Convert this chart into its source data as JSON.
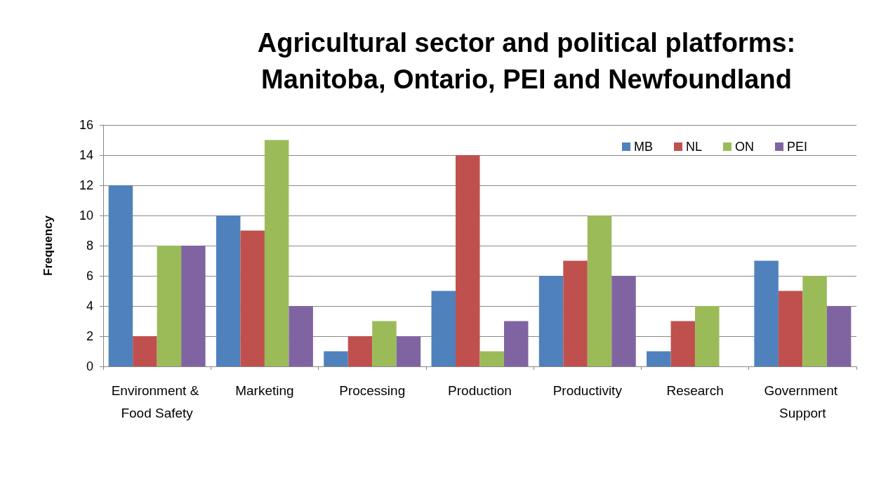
{
  "chart_data": {
    "type": "bar",
    "title": "Agricultural sector and political platforms:\nManitoba, Ontario, PEI and Newfoundland",
    "ylabel": "Frequency",
    "categories": [
      "Environment & Food Safety",
      "Marketing",
      "Processing",
      "Production",
      "Productivity",
      "Research",
      "Government Support"
    ],
    "series": [
      {
        "name": "MB",
        "color": "#4f81bd",
        "values": [
          12,
          10,
          1,
          5,
          6,
          1,
          7
        ]
      },
      {
        "name": "NL",
        "color": "#c0504d",
        "values": [
          2,
          9,
          2,
          14,
          7,
          3,
          5
        ]
      },
      {
        "name": "ON",
        "color": "#9bbb59",
        "values": [
          8,
          15,
          3,
          1,
          10,
          4,
          6
        ]
      },
      {
        "name": "PEI",
        "color": "#8064a2",
        "values": [
          8,
          4,
          2,
          3,
          6,
          0,
          4
        ]
      }
    ],
    "ylim": [
      0,
      16
    ],
    "yticks": [
      0,
      2,
      4,
      6,
      8,
      10,
      12,
      14,
      16
    ],
    "grid": "y",
    "legend": "top right"
  }
}
